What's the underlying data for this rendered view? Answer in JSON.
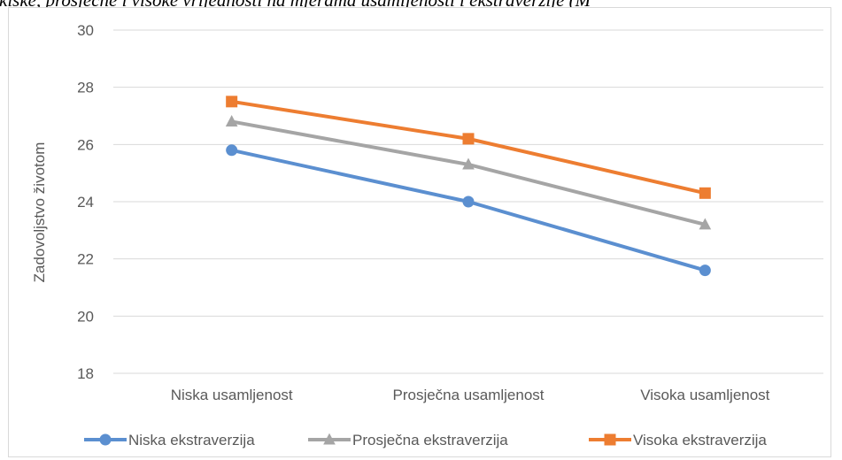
{
  "caption": "kiske, prosječne i visoke vrijednosti na mjerama usamljenosti i ekstraverzije (M",
  "chart_data": {
    "type": "line",
    "title": "",
    "xlabel": "",
    "ylabel": "Zadovoljstvo životom",
    "categories": [
      "Niska usamljenost",
      "Prosječna usamljenost",
      "Visoka usamljenost"
    ],
    "ylim": [
      18,
      30
    ],
    "yticks": [
      18,
      20,
      22,
      24,
      26,
      28,
      30
    ],
    "grid": true,
    "legend_position": "bottom",
    "series": [
      {
        "name": "Niska ekstraverzija",
        "values": [
          25.8,
          24.0,
          21.6
        ],
        "color": "#5b8fd0",
        "marker": "circle"
      },
      {
        "name": "Prosječna ekstraverzija",
        "values": [
          26.8,
          25.3,
          23.2
        ],
        "color": "#a5a5a5",
        "marker": "triangle"
      },
      {
        "name": "Visoka ekstraverzija",
        "values": [
          27.5,
          26.2,
          24.3
        ],
        "color": "#ed7d31",
        "marker": "square"
      }
    ]
  }
}
